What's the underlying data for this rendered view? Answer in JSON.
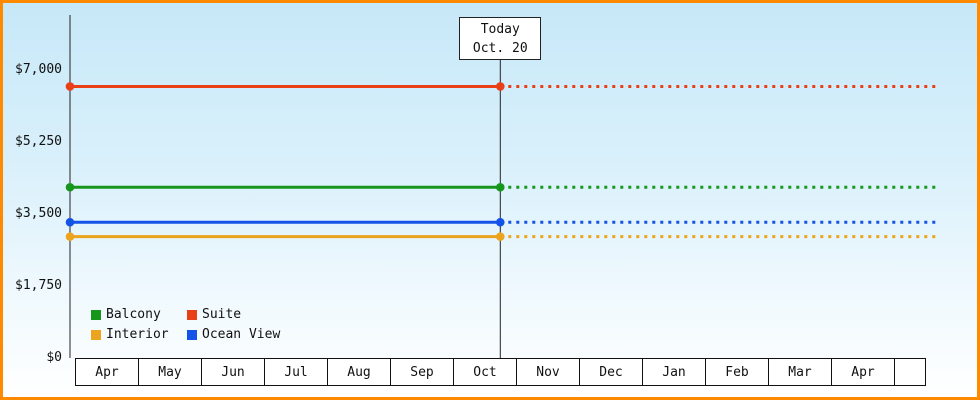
{
  "chart_data": {
    "type": "line",
    "title": "",
    "xlabel": "",
    "ylabel": "",
    "ylim": [
      0,
      7000
    ],
    "grid": false,
    "legend_position": "bottom-left-inside",
    "months": [
      "Apr",
      "May",
      "Jun",
      "Jul",
      "Aug",
      "Sep",
      "Oct",
      "Nov",
      "Dec",
      "Jan",
      "Feb",
      "Mar",
      "Apr"
    ],
    "y_ticks": [
      {
        "label": "$0",
        "value": 0
      },
      {
        "label": "$1,750",
        "value": 1750
      },
      {
        "label": "$3,500",
        "value": 3500
      },
      {
        "label": "$5,250",
        "value": 5250
      },
      {
        "label": "$7,000",
        "value": 7000
      }
    ],
    "today": {
      "line1": "Today",
      "line2": "Oct. 20",
      "month_index": 6,
      "day": 20
    },
    "series": [
      {
        "name": "Suite",
        "value": 6600,
        "color": "#e93f17",
        "solid_until_today": true,
        "dashed_after_today": true
      },
      {
        "name": "Balcony",
        "value": 4150,
        "color": "#17961c",
        "solid_until_today": true,
        "dashed_after_today": true
      },
      {
        "name": "Ocean View",
        "value": 3300,
        "color": "#1353e8",
        "solid_until_today": true,
        "dashed_after_today": true
      },
      {
        "name": "Interior",
        "value": 2950,
        "color": "#eca41e",
        "solid_until_today": true,
        "dashed_after_today": true
      }
    ],
    "legend": [
      "Balcony",
      "Suite",
      "Interior",
      "Ocean View"
    ]
  },
  "frame": {
    "border_color": "#ff8a00"
  }
}
